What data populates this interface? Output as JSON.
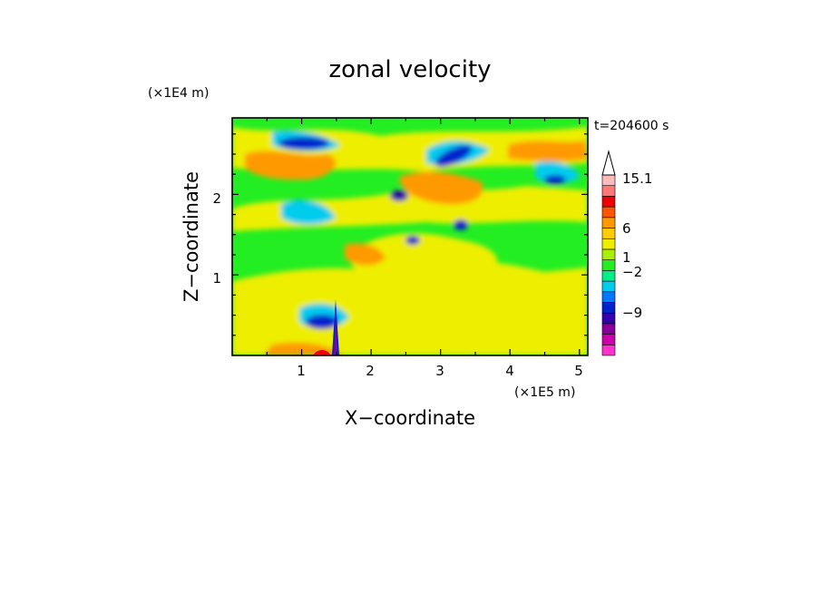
{
  "chart_data": {
    "type": "heatmap",
    "title": "zonal velocity",
    "xlabel": "X−coordinate",
    "ylabel": "Z−coordinate",
    "x_unit": "(×1E5 m)",
    "y_unit": "(×1E4 m)",
    "time_label": "t=204600 s",
    "x_ticks": [
      "1",
      "2",
      "3",
      "4",
      "5"
    ],
    "y_ticks": [
      "1",
      "2"
    ],
    "xlim": [
      0,
      5.12
    ],
    "ylim": [
      0,
      2.95
    ],
    "colorbar": {
      "labels": [
        "15.1",
        "6",
        "1",
        "−2",
        "−9"
      ],
      "colors": [
        "#ff33cc",
        "#cc00aa",
        "#880099",
        "#3300aa",
        "#0022cc",
        "#0077ff",
        "#00ccee",
        "#00ee88",
        "#22ee22",
        "#aaee00",
        "#eeee00",
        "#ffcc00",
        "#ff9900",
        "#ff5500",
        "#ee0000",
        "#ff7777",
        "#ffbbbb",
        "#ffffff"
      ]
    }
  }
}
